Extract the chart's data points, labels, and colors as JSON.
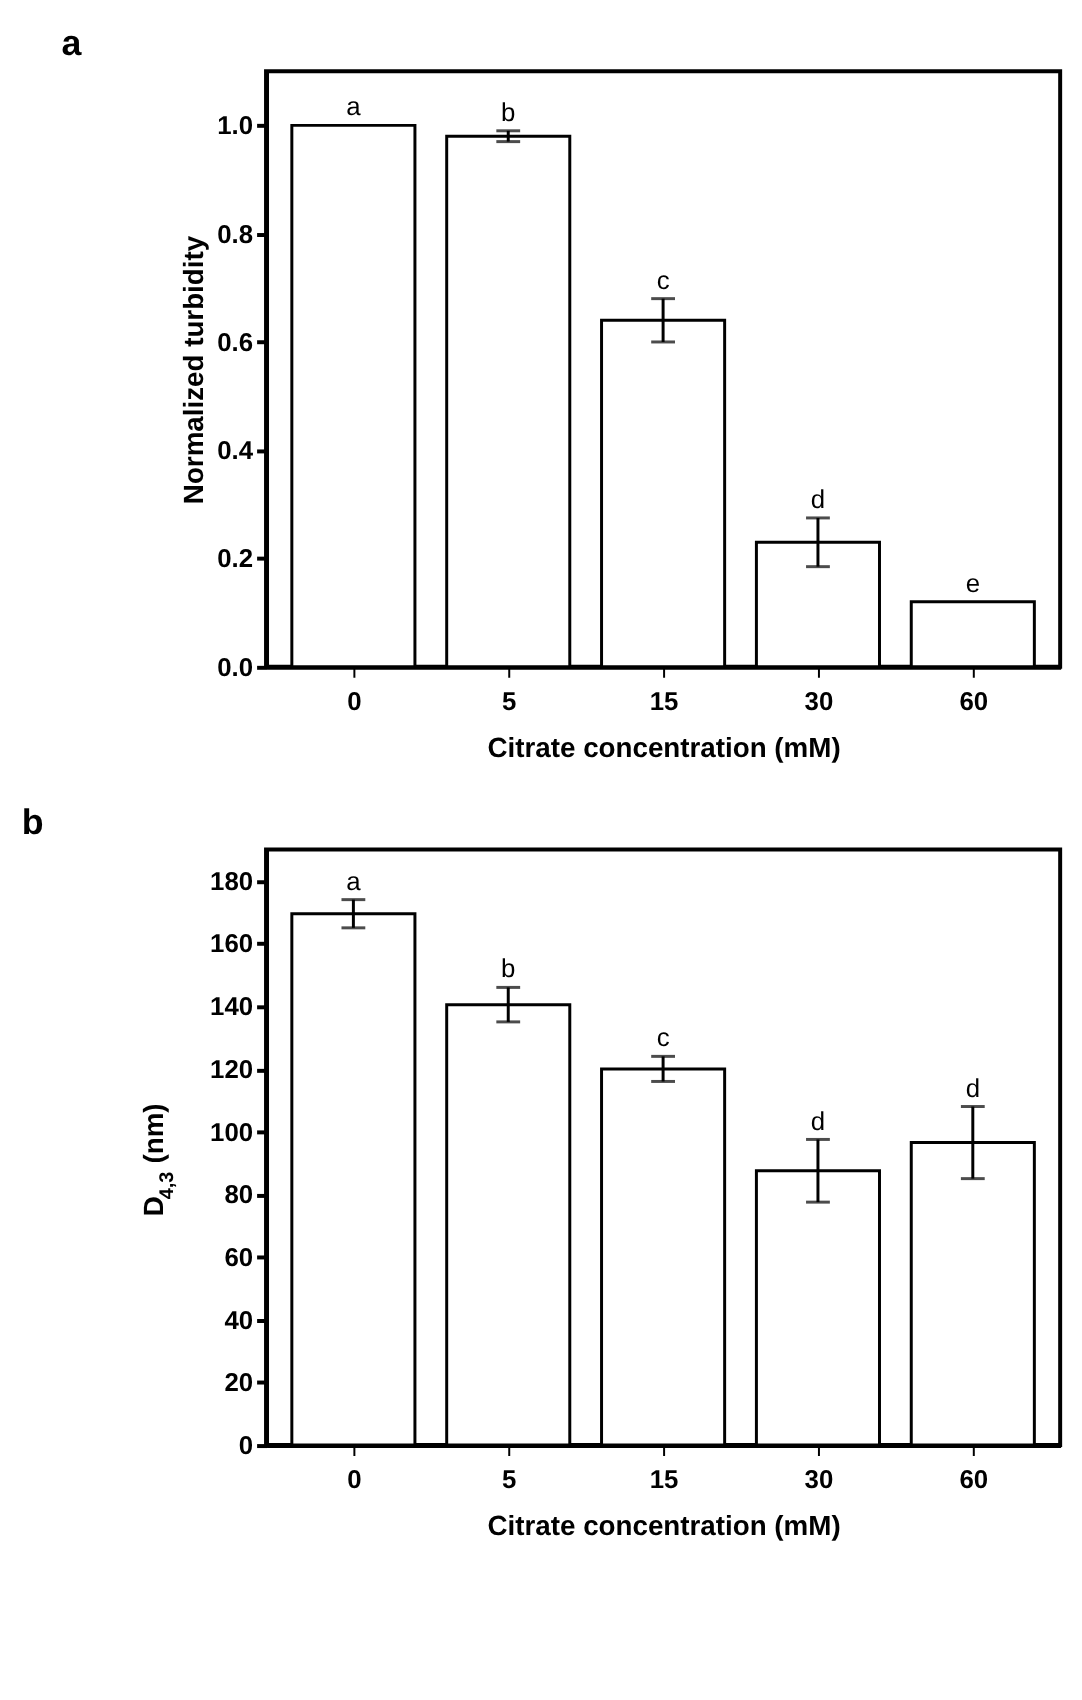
{
  "chart_data": [
    {
      "type": "bar",
      "title": "a",
      "xlabel": "Citrate concentration (mM)",
      "ylabel": "Normalized turbidity",
      "categories": [
        "0",
        "5",
        "15",
        "30",
        "60"
      ],
      "color": "#ffffff",
      "values": [
        1.0,
        0.98,
        0.64,
        0.23,
        0.12
      ],
      "errors": [
        null,
        0.01,
        0.04,
        0.045,
        null
      ],
      "ylim": [
        0,
        1.1
      ],
      "yticks": [
        {
          "value": 0,
          "label": "0.0"
        },
        0.2,
        0.4,
        0.6,
        0.8,
        {
          "value": 1,
          "label": "1.0"
        }
      ],
      "grid": false,
      "annotations": [
        {
          "text": "a",
          "x": "0",
          "y": 1.0
        },
        {
          "text": "b",
          "x": "5",
          "y": 0.99
        },
        {
          "text": "c",
          "x": "15",
          "y": 0.68
        },
        {
          "text": "d",
          "x": "30",
          "y": 0.275
        },
        {
          "text": "e",
          "x": "60",
          "y": 0.12
        }
      ]
    },
    {
      "type": "bar",
      "title": "b",
      "xlabel": "Citrate concentration (mM)",
      "ylabel": "D$_{4,3}$ (nm)",
      "categories": [
        "0",
        "5",
        "15",
        "30",
        "60"
      ],
      "color": "#ffffff",
      "values": [
        169.5,
        140.5,
        120,
        87.5,
        96.5
      ],
      "errors": [
        4.5,
        5.5,
        4,
        10,
        11.5
      ],
      "ylim": [
        0,
        190
      ],
      "yticks": [
        0,
        20,
        40,
        60,
        80,
        100,
        120,
        140,
        160,
        180
      ],
      "grid": false,
      "annotations": [
        {
          "text": "a",
          "x": "0",
          "y": 174
        },
        {
          "text": "b",
          "x": "5",
          "y": 146
        },
        {
          "text": "c",
          "x": "15",
          "y": 124
        },
        {
          "text": "d",
          "x": "30",
          "y": 97.5
        },
        {
          "text": "d",
          "x": "60",
          "y": 108
        }
      ]
    }
  ]
}
